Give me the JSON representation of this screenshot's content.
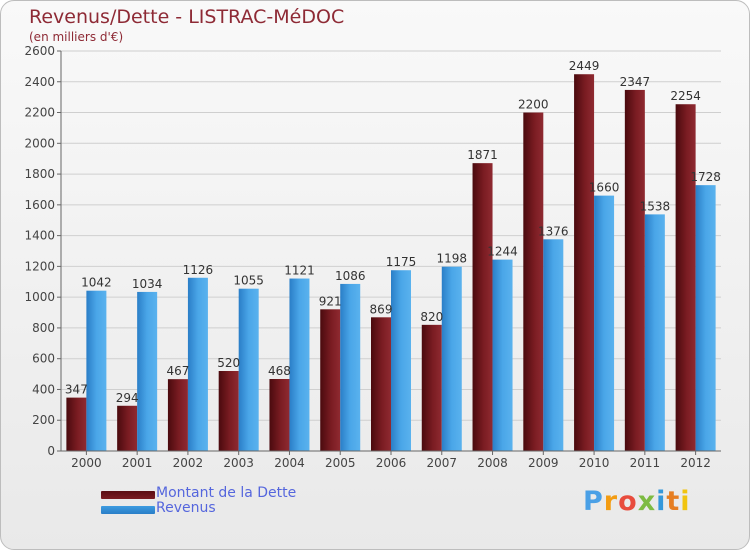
{
  "title": "Revenus/Dette - LISTRAC-MéDOC",
  "subtitle": "(en milliers d'€)",
  "logo_text": "Proxiti",
  "legend": {
    "debt_label": "Montant de la Dette",
    "revenue_label": "Revenus"
  },
  "colors": {
    "debt": "#7a1c22",
    "revenue": "#3d9be0",
    "title": "#8e2a35",
    "legend_text": "#5566dd"
  },
  "chart_data": {
    "type": "bar",
    "title": "Revenus/Dette - LISTRAC-MéDOC",
    "subtitle": "(en milliers d'€)",
    "categories": [
      "2000",
      "2001",
      "2002",
      "2003",
      "2004",
      "2005",
      "2006",
      "2007",
      "2008",
      "2009",
      "2010",
      "2011",
      "2012"
    ],
    "series": [
      {
        "name": "Montant de la Dette",
        "values": [
          347,
          294,
          467,
          520,
          468,
          921,
          869,
          820,
          1871,
          2200,
          2449,
          2347,
          2254
        ]
      },
      {
        "name": "Revenus",
        "values": [
          1042,
          1034,
          1126,
          1055,
          1121,
          1086,
          1175,
          1198,
          1244,
          1376,
          1660,
          1538,
          1728
        ]
      }
    ],
    "ylim": [
      0,
      2600
    ],
    "yticks": [
      0,
      200,
      400,
      600,
      800,
      1000,
      1200,
      1400,
      1600,
      1800,
      2000,
      2200,
      2400,
      2600
    ],
    "grid": true,
    "legend_position": "bottom-left"
  }
}
